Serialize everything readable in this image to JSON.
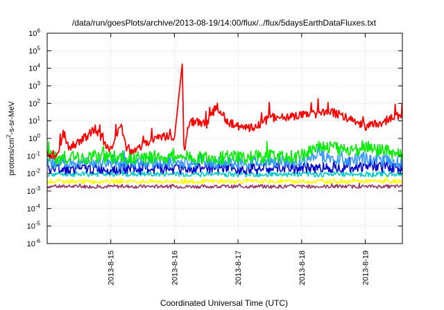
{
  "chart_data": {
    "type": "line",
    "title": "/data/run/goesPlots/archive/2013-08-19/14:00/flux/../flux/5daysEarthDataFluxes.txt",
    "xlabel": "Coordinated Universal Time (UTC)",
    "ylabel": {
      "main": "protons/cm",
      "sup": "2",
      "rest": "-s-sr-MeV"
    },
    "y_scale": "log",
    "ylim": [
      1e-06,
      1000000.0
    ],
    "xlim": [
      "2013-08-14 00:00",
      "2013-08-19 14:00"
    ],
    "grid": true,
    "x_ticks": [
      "2013-8-15",
      "2013-8-16",
      "2013-8-17",
      "2013-8-18",
      "2013-8-19"
    ],
    "y_ticks": [
      {
        "base": "10",
        "exp": "-6"
      },
      {
        "base": "10",
        "exp": "-5"
      },
      {
        "base": "10",
        "exp": "-4"
      },
      {
        "base": "10",
        "exp": "-3"
      },
      {
        "base": "10",
        "exp": "-2"
      },
      {
        "base": "10",
        "exp": "-1"
      },
      {
        "base": "10",
        "exp": "0"
      },
      {
        "base": "10",
        "exp": "1"
      },
      {
        "base": "10",
        "exp": "2"
      },
      {
        "base": "10",
        "exp": "3"
      },
      {
        "base": "10",
        "exp": "4"
      },
      {
        "base": "10",
        "exp": "5"
      },
      {
        "base": "10",
        "exp": "6"
      }
    ],
    "series": [
      {
        "color": "#ff0000",
        "x": [
          "2013-08-14 00:00",
          "2013-08-14 04:00",
          "2013-08-14 06:00",
          "2013-08-14 08:00",
          "2013-08-14 12:00",
          "2013-08-14 18:00",
          "2013-08-15 00:00",
          "2013-08-15 04:00",
          "2013-08-15 06:00",
          "2013-08-15 08:00",
          "2013-08-15 12:00",
          "2013-08-15 18:00",
          "2013-08-16 00:00",
          "2013-08-16 03:00",
          "2013-08-16 03:30",
          "2013-08-16 04:00",
          "2013-08-16 06:00",
          "2013-08-16 12:00",
          "2013-08-16 16:00",
          "2013-08-16 20:00",
          "2013-08-17 00:00",
          "2013-08-17 06:00",
          "2013-08-17 12:00",
          "2013-08-18 00:00",
          "2013-08-18 12:00",
          "2013-08-19 00:00",
          "2013-08-19 06:00",
          "2013-08-19 14:00"
        ],
        "values": [
          0.12,
          0.12,
          2.5,
          0.3,
          0.6,
          3.5,
          0.2,
          5,
          0.3,
          0.2,
          0.4,
          1.5,
          1,
          20000,
          0.6,
          0.3,
          10,
          6,
          80,
          8,
          5,
          4,
          15,
          20,
          30,
          5,
          8,
          25
        ]
      },
      {
        "color": "#00ee00",
        "x": [
          "2013-08-14 00:00",
          "2013-08-15 00:00",
          "2013-08-16 00:00",
          "2013-08-17 00:00",
          "2013-08-18 00:00",
          "2013-08-18 06:00",
          "2013-08-18 18:00",
          "2013-08-19 00:00",
          "2013-08-19 14:00"
        ],
        "values": [
          0.08,
          0.08,
          0.08,
          0.08,
          0.1,
          0.4,
          0.2,
          0.35,
          0.1
        ]
      },
      {
        "color": "#3399ff",
        "x": [
          "2013-08-14 00:00",
          "2013-08-15 00:00",
          "2013-08-16 00:00",
          "2013-08-17 00:00",
          "2013-08-18 00:00",
          "2013-08-18 06:00",
          "2013-08-18 18:00",
          "2013-08-19 00:00",
          "2013-08-19 14:00"
        ],
        "values": [
          0.04,
          0.04,
          0.04,
          0.04,
          0.05,
          0.1,
          0.05,
          0.08,
          0.04
        ]
      },
      {
        "color": "#0000cc",
        "x": [
          "2013-08-14 00:00",
          "2013-08-15 00:00",
          "2013-08-16 00:00",
          "2013-08-17 00:00",
          "2013-08-18 00:00",
          "2013-08-19 00:00",
          "2013-08-19 14:00"
        ],
        "values": [
          0.018,
          0.018,
          0.018,
          0.018,
          0.02,
          0.025,
          0.02
        ]
      },
      {
        "color": "#00cccc",
        "x": [
          "2013-08-14 00:00",
          "2013-08-16 00:00",
          "2013-08-18 00:00",
          "2013-08-19 14:00"
        ],
        "values": [
          0.009,
          0.009,
          0.009,
          0.009
        ]
      },
      {
        "color": "#ffff00",
        "x": [
          "2013-08-14 00:00",
          "2013-08-16 00:00",
          "2013-08-18 00:00",
          "2013-08-19 14:00"
        ],
        "values": [
          0.0035,
          0.0035,
          0.0035,
          0.0035
        ]
      },
      {
        "color": "#993366",
        "x": [
          "2013-08-14 00:00",
          "2013-08-16 00:00",
          "2013-08-18 00:00",
          "2013-08-19 14:00"
        ],
        "values": [
          0.0018,
          0.0018,
          0.0018,
          0.0018
        ]
      }
    ]
  }
}
